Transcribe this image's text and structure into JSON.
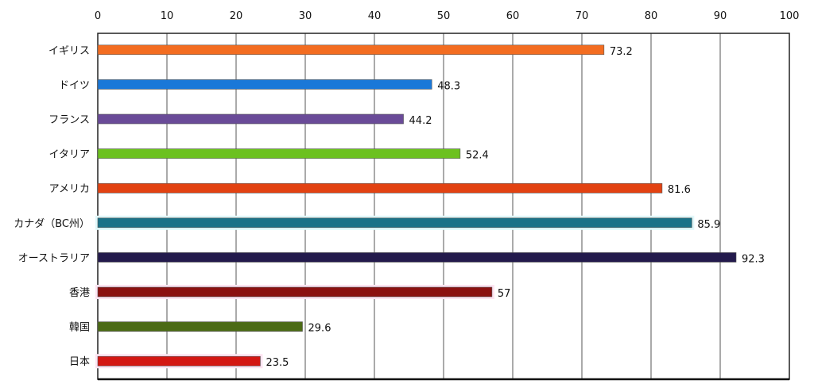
{
  "chart_data": {
    "type": "bar",
    "orientation": "horizontal",
    "title": "",
    "xlabel": "",
    "ylabel": "",
    "xlim": [
      0,
      100
    ],
    "x_ticks": [
      0,
      10,
      20,
      30,
      40,
      50,
      60,
      70,
      80,
      90,
      100
    ],
    "x_axis_position": "top",
    "grid": true,
    "categories": [
      "イギリス",
      "ドイツ",
      "フランス",
      "イタリア",
      "アメリカ",
      "カナダ（BC州）",
      "オーストラリア",
      "香港",
      "韓国",
      "日本"
    ],
    "values": [
      73.2,
      48.3,
      44.2,
      52.4,
      81.6,
      85.9,
      92.3,
      57,
      29.6,
      23.5
    ],
    "value_labels": [
      "73.2",
      "48.3",
      "44.2",
      "52.4",
      "81.6",
      "85.9",
      "92.3",
      "57",
      "29.6",
      "23.5"
    ],
    "colors": [
      "#f36d21",
      "#1a78d8",
      "#6a4b98",
      "#6cc11f",
      "#e24212",
      "#1a7288",
      "#231a4c",
      "#8b1010",
      "#4b6a16",
      "#d31612"
    ],
    "highlighted": [
      "カナダ（BC州）",
      "香港",
      "日本"
    ]
  }
}
